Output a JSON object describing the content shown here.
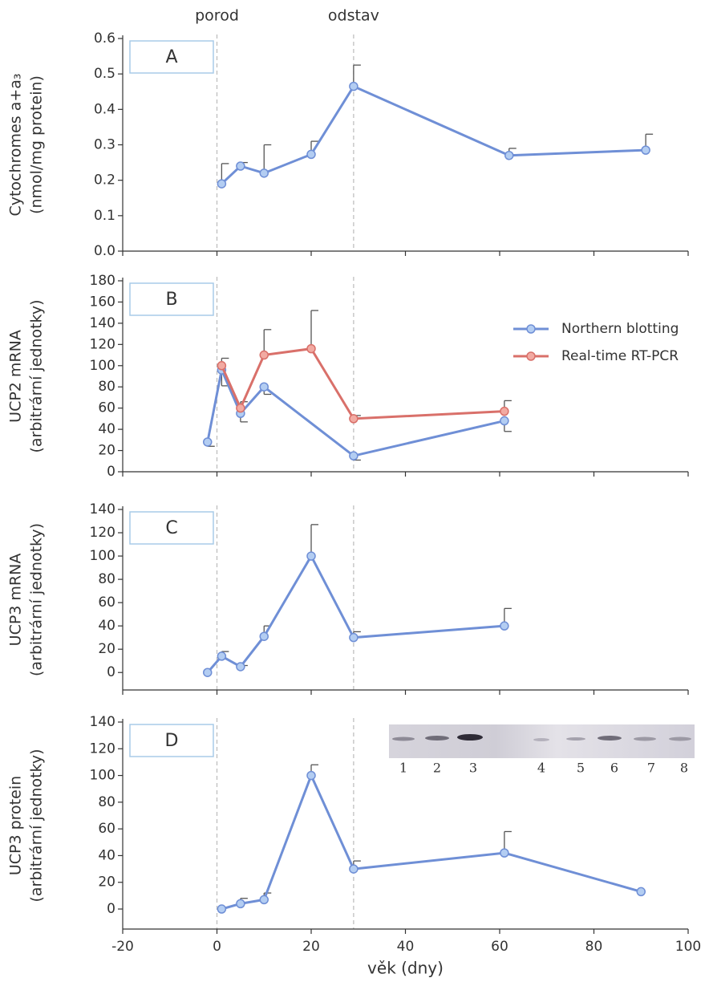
{
  "shared_x": {
    "xlabel": "věk (dny)",
    "xlim": [
      -20,
      100
    ],
    "xticks": [
      -20,
      0,
      20,
      40,
      60,
      80,
      100
    ]
  },
  "events": [
    {
      "label": "porod",
      "x": 0
    },
    {
      "label": "odstav",
      "x": 29
    }
  ],
  "chart_data": [
    {
      "type": "line",
      "panel_label": "A",
      "ylabel": [
        "Cytochromes a+a₃",
        "(nmol/mg protein)"
      ],
      "ylim": [
        0,
        0.6
      ],
      "yticks": [
        {
          "value": 0,
          "label": "0.0"
        },
        0.1,
        0.2,
        0.3,
        0.4,
        0.5,
        0.6
      ],
      "error_direction": "up",
      "series": [
        {
          "name": null,
          "color": "#6f8fd6",
          "marker_color": "#b3cdf2",
          "x": [
            1,
            5,
            10,
            20,
            29,
            62,
            91
          ],
          "values": [
            0.19,
            0.24,
            0.22,
            0.273,
            0.465,
            0.27,
            0.285
          ],
          "errors": [
            0.057,
            0.01,
            0.08,
            0.037,
            0.06,
            0.02,
            0.045
          ]
        }
      ]
    },
    {
      "type": "line",
      "panel_label": "B",
      "ylabel": [
        "UCP2 mRNA",
        "(arbitrární jednotky)"
      ],
      "ylim": [
        0,
        180
      ],
      "yticks": [
        0,
        20,
        40,
        60,
        80,
        100,
        120,
        140,
        160,
        180
      ],
      "legend": "right",
      "series": [
        {
          "name": "Northern blotting",
          "color": "#6f8fd6",
          "marker_color": "#b3cdf2",
          "error_direction": "down",
          "x": [
            -2,
            1,
            5,
            10,
            29,
            61
          ],
          "values": [
            28,
            96,
            55,
            80,
            15,
            48
          ],
          "errors": [
            4,
            15,
            8,
            7,
            4,
            10
          ]
        },
        {
          "name": "Real-time RT-PCR",
          "color": "#d9706a",
          "marker_color": "#f2aaa2",
          "error_direction": "up",
          "x": [
            1,
            5,
            10,
            20,
            29,
            61
          ],
          "values": [
            100,
            60,
            110,
            116,
            50,
            57
          ],
          "errors": [
            7,
            6,
            24,
            36,
            3,
            10
          ]
        }
      ]
    },
    {
      "type": "line",
      "panel_label": "C",
      "ylabel": [
        "UCP3 mRNA",
        "(arbitrární jednotky)"
      ],
      "ylim": [
        -15,
        140
      ],
      "yticks": [
        0,
        20,
        40,
        60,
        80,
        100,
        120,
        140
      ],
      "error_direction": "up",
      "series": [
        {
          "name": null,
          "color": "#6f8fd6",
          "marker_color": "#b3cdf2",
          "x": [
            -2,
            1,
            5,
            10,
            20,
            29,
            61
          ],
          "values": [
            0,
            14,
            5,
            31,
            100,
            30,
            40
          ],
          "errors": [
            null,
            4,
            1,
            9,
            27,
            5,
            15
          ]
        }
      ]
    },
    {
      "type": "line",
      "panel_label": "D",
      "ylabel": [
        "UCP3 protein",
        "(arbitrární jednotky)"
      ],
      "ylim": [
        -15,
        140
      ],
      "yticks": [
        0,
        20,
        40,
        60,
        80,
        100,
        120,
        140
      ],
      "error_direction": "up",
      "inset_lanes": [
        "1",
        "2",
        "3",
        "4",
        "5",
        "6",
        "7",
        "8"
      ],
      "series": [
        {
          "name": null,
          "color": "#6f8fd6",
          "marker_color": "#b3cdf2",
          "x": [
            1,
            5,
            10,
            20,
            29,
            61,
            90
          ],
          "values": [
            0,
            4,
            7,
            100,
            30,
            42,
            13
          ],
          "errors": [
            null,
            4,
            5,
            8,
            6,
            16,
            null
          ]
        }
      ]
    }
  ]
}
